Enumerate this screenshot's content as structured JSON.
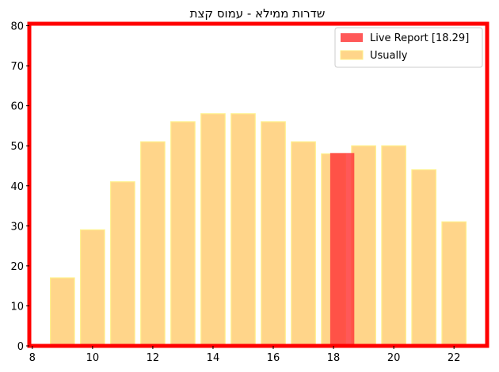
{
  "chart_data": {
    "type": "bar",
    "title": "שדרות ממילא - עמוס קצת",
    "xlabel": "",
    "ylabel": "",
    "xlim": [
      7.9,
      23.1
    ],
    "ylim": [
      0,
      80.5
    ],
    "xticks": [
      8,
      10,
      12,
      14,
      16,
      18,
      20,
      22
    ],
    "yticks": [
      0,
      10,
      20,
      30,
      40,
      50,
      60,
      70,
      80
    ],
    "grid": false,
    "legend_position": "top-right",
    "series": [
      {
        "name": "Usually",
        "color": "#FFD58A",
        "edge_color": "#FFF08A",
        "bar_width": 0.8,
        "x": [
          9,
          10,
          11,
          12,
          13,
          14,
          15,
          16,
          17,
          18,
          19,
          20,
          21,
          22
        ],
        "values": [
          17,
          29,
          41,
          51,
          56,
          58,
          58,
          56,
          51,
          48,
          50,
          50,
          44,
          31
        ]
      },
      {
        "name": "Live Report [18.29]",
        "color": "#FF3B3B",
        "bar_width": 0.8,
        "x": [
          18.29
        ],
        "values": [
          48.2
        ]
      }
    ],
    "frame_color": "#FF0000"
  }
}
